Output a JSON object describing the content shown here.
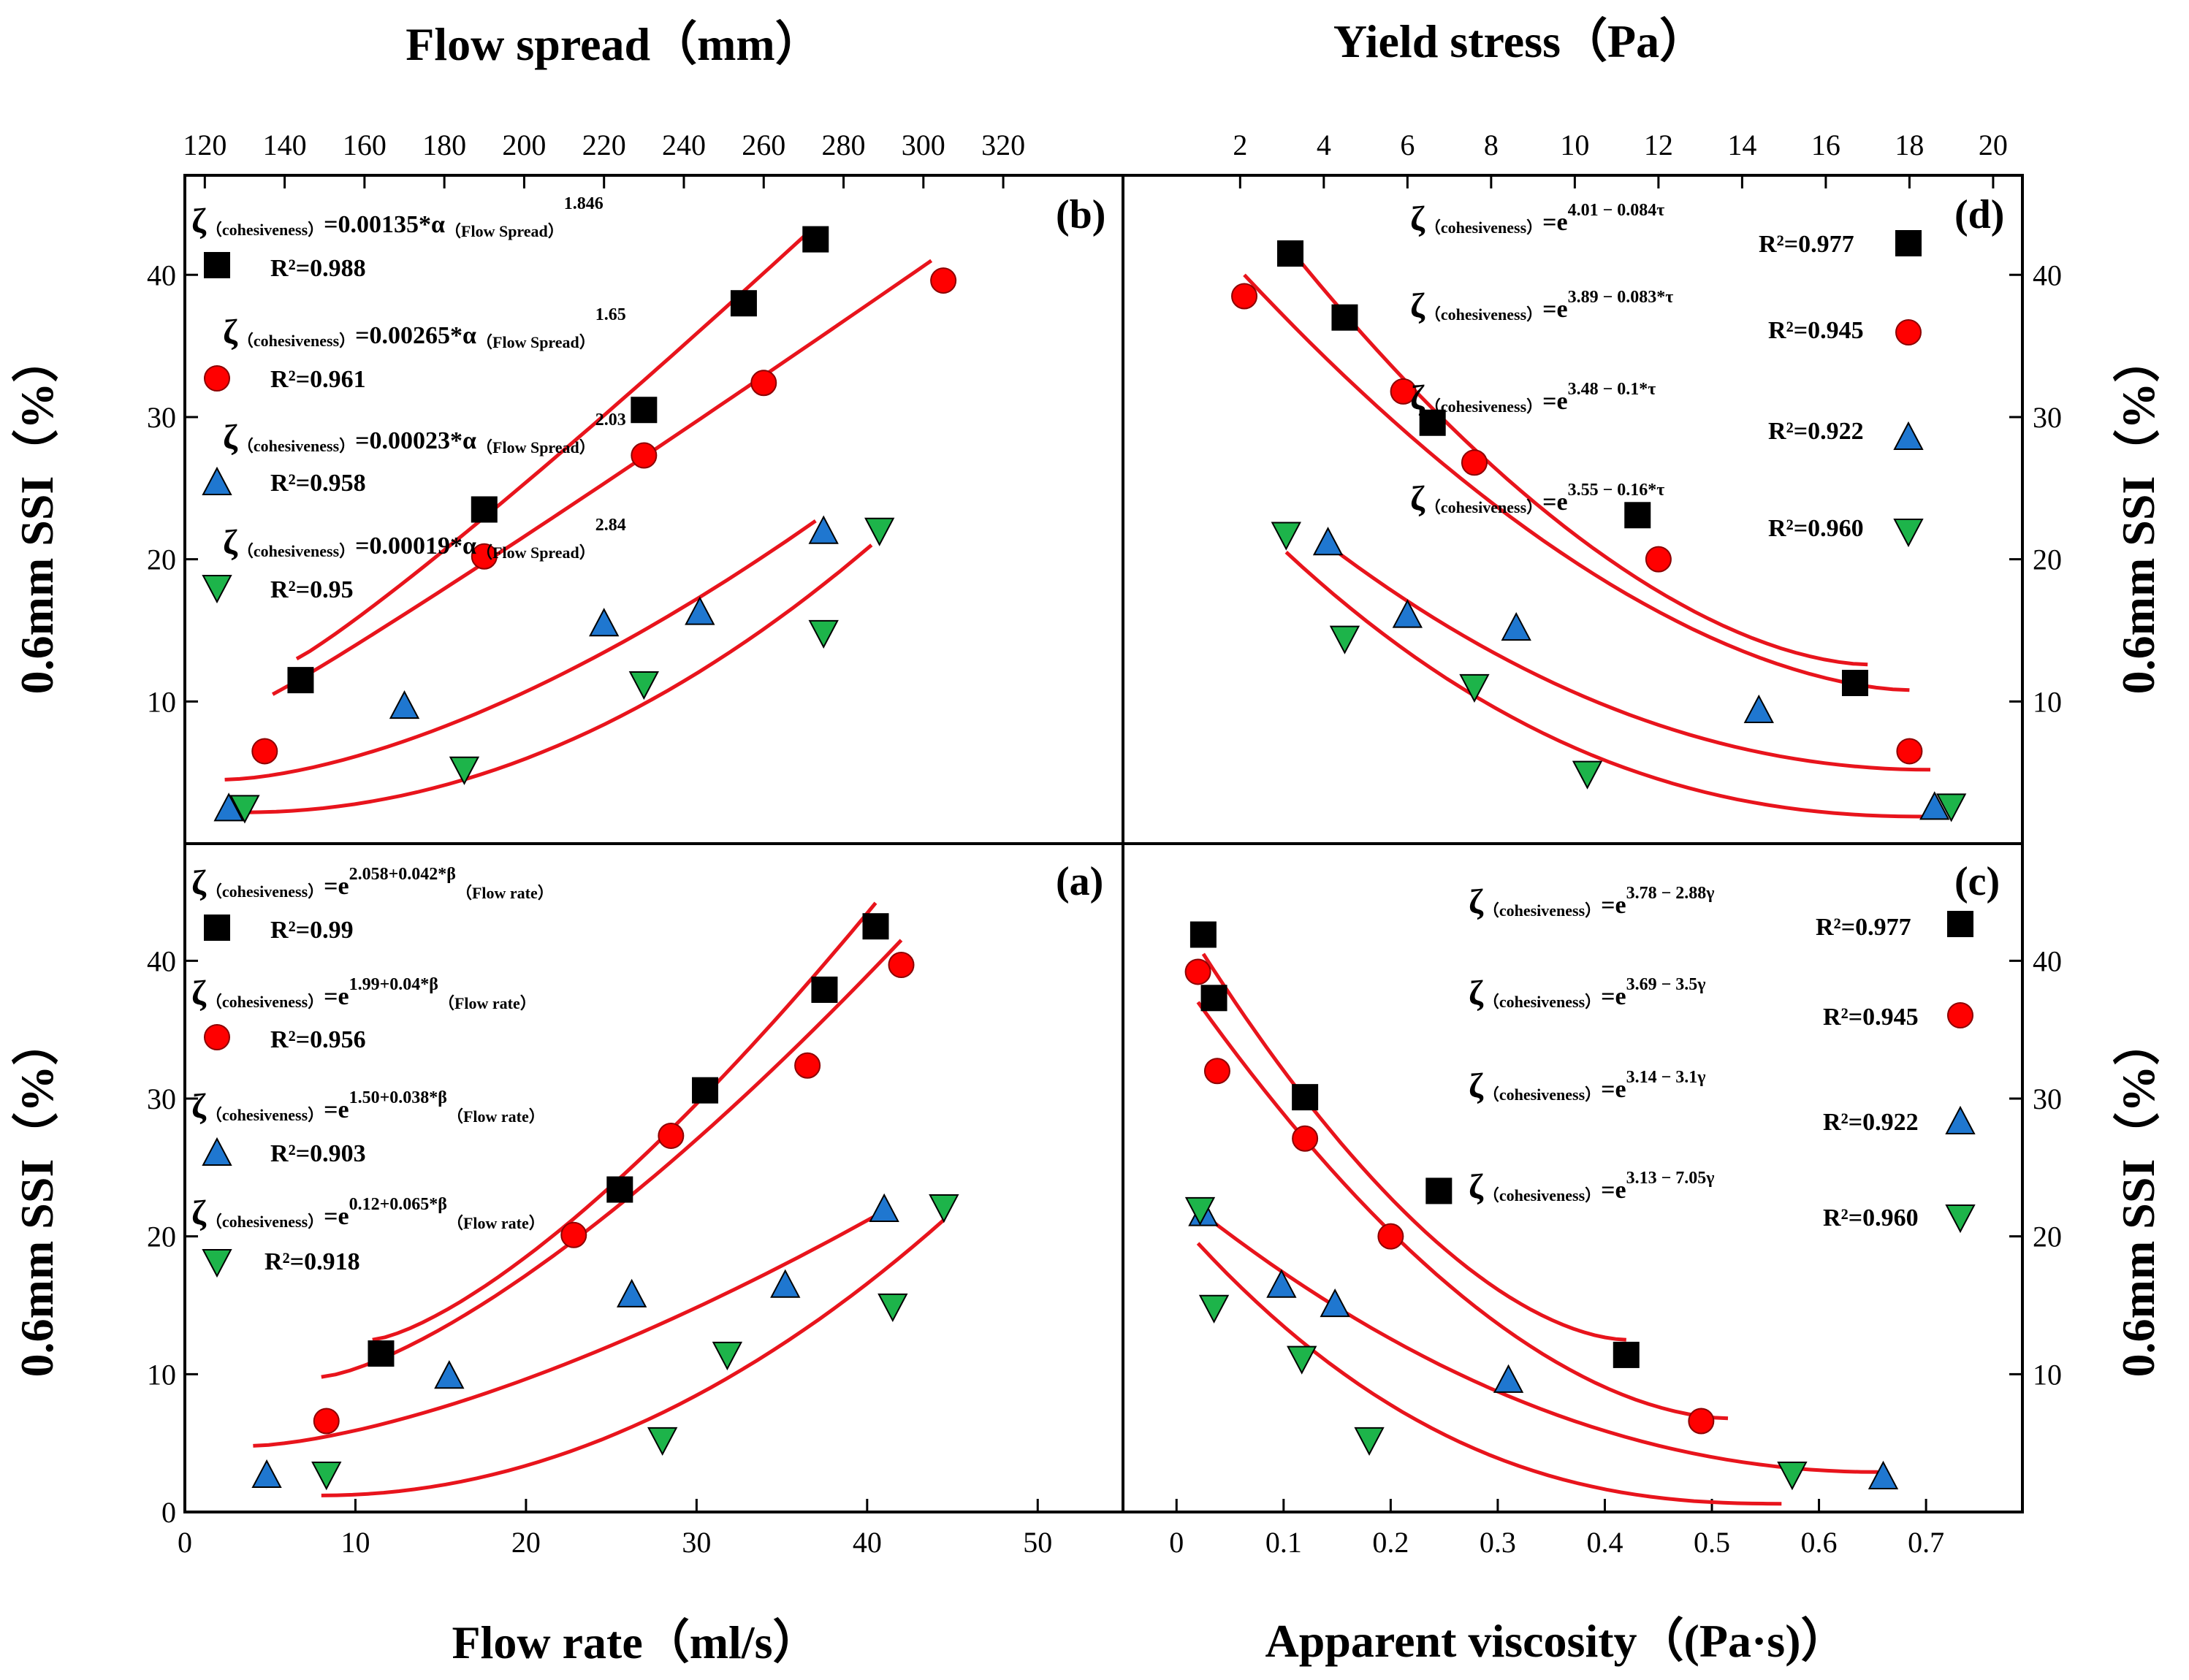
{
  "chart_data": {
    "type": "scatter",
    "title": "",
    "shared": {
      "left_ylabel": "0.6mm SSI（%）",
      "right_ylabel": "0.6mm SSI（%）",
      "top_left_xlabel": "Flow spread（mm）",
      "top_right_xlabel": "Yield stress（Pa）",
      "bottom_left_xlabel": "Flow rate（ml/s）",
      "bottom_right_xlabel": "Apparent viscosity（(Pa·s)）",
      "series_markers": [
        "square",
        "circle",
        "triangle-up",
        "triangle-down"
      ],
      "series_colors": [
        "#000000",
        "#ff0000",
        "#1f77d0",
        "#1db44a"
      ],
      "fit_color": "#e8141c",
      "coef_label": "ζ",
      "coef_sub": "（cohesiveness）"
    },
    "panels": [
      {
        "id": "b",
        "label": "(b)",
        "xlabel": "Flow spread（mm）",
        "x_axis_position": "top",
        "xlim": [
          115,
          350
        ],
        "xticks": [
          120,
          140,
          160,
          180,
          200,
          220,
          240,
          260,
          280,
          300,
          320
        ],
        "ylim": [
          0,
          47
        ],
        "yticks": [
          10,
          20,
          30,
          40
        ],
        "y_axis_position": "left",
        "series": [
          {
            "name": "square",
            "x": [
              144,
              190,
              230,
              255,
              273
            ],
            "y": [
              11.5,
              23.5,
              30.5,
              38,
              42.5
            ],
            "fit": {
              "x0": 143,
              "x1": 272,
              "y0": 13,
              "y1": 43.2,
              "curv": 1.1
            },
            "eq": {
              "pre": "=0.00135*α",
              "sub": "（Flow Spread）",
              "sup": "1.846"
            },
            "r2": "R²=0.988"
          },
          {
            "name": "circle",
            "x": [
              135,
              190,
              230,
              260,
              305
            ],
            "y": [
              6.5,
              20.2,
              27.3,
              32.4,
              39.6
            ],
            "fit": {
              "x0": 137,
              "x1": 302,
              "y0": 10.5,
              "y1": 41,
              "curv": 1.05
            },
            "eq": {
              "pre": "=0.00265*α",
              "sub": "（Flow Spread）",
              "sup": "1.65"
            },
            "r2": "R²=0.961"
          },
          {
            "name": "triangle-up",
            "x": [
              126,
              170,
              220,
              244,
              275
            ],
            "y": [
              2.5,
              9.7,
              15.5,
              16.3,
              22
            ],
            "fit": {
              "x0": 125,
              "x1": 273,
              "y0": 4.5,
              "y1": 22.7,
              "curv": 1.6
            },
            "eq": {
              "pre": "=0.00023*α",
              "sub": "（Flow Spread）",
              "sup": "2.03"
            },
            "r2": "R²=0.958"
          },
          {
            "name": "triangle-down",
            "x": [
              130,
              185,
              230,
              275,
              289
            ],
            "y": [
              2.5,
              5.2,
              11.2,
              14.8,
              22
            ],
            "fit": {
              "x0": 130,
              "x1": 287,
              "y0": 2.2,
              "y1": 21,
              "curv": 2.0
            },
            "eq": {
              "pre": "=0.00019*α",
              "sub": "（Flow Spread）",
              "sup": "2.84"
            },
            "r2": "R²=0.95"
          }
        ]
      },
      {
        "id": "a",
        "label": "(a)",
        "xlabel": "Flow rate（ml/s）",
        "x_axis_position": "bottom",
        "xlim": [
          0,
          55
        ],
        "xticks": [
          0,
          10,
          20,
          30,
          40,
          50
        ],
        "ylim": [
          0,
          48.5
        ],
        "yticks": [
          0,
          10,
          20,
          30,
          40
        ],
        "y_axis_position": "left",
        "series": [
          {
            "name": "square",
            "x": [
              11.5,
              25.5,
              30.5,
              37.5,
              40.5
            ],
            "y": [
              11.5,
              23.4,
              30.6,
              37.9,
              42.5
            ],
            "fit": {
              "x0": 11,
              "x1": 40.5,
              "y0": 12.5,
              "y1": 44.2,
              "curv": 1.4
            },
            "eq": {
              "pre": "=e",
              "sup": "2.058+0.042*β",
              "sub": "（Flow rate）"
            },
            "r2": "R²=0.99"
          },
          {
            "name": "circle",
            "x": [
              8.3,
              22.8,
              28.5,
              36.5,
              42
            ],
            "y": [
              6.6,
              20.1,
              27.3,
              32.4,
              39.7
            ],
            "fit": {
              "x0": 8,
              "x1": 42,
              "y0": 9.8,
              "y1": 41.5,
              "curv": 1.4
            },
            "eq": {
              "pre": "=e",
              "sup": "1.99+0.04*β",
              "sub": "（Flow rate）"
            },
            "r2": "R²=0.956"
          },
          {
            "name": "triangle-up",
            "x": [
              4.8,
              15.5,
              26.2,
              35.2,
              41
            ],
            "y": [
              2.7,
              9.9,
              15.8,
              16.5,
              22
            ],
            "fit": {
              "x0": 4,
              "x1": 40.5,
              "y0": 4.8,
              "y1": 21.5,
              "curv": 1.5
            },
            "eq": {
              "pre": "=e",
              "sup": "1.50+0.038*β",
              "sub": "（Flow rate）"
            },
            "r2": "R²=0.903"
          },
          {
            "name": "triangle-down",
            "x": [
              8.3,
              28,
              31.8,
              41.5,
              44.5
            ],
            "y": [
              2.7,
              5.2,
              11.4,
              14.9,
              22.1
            ],
            "fit": {
              "x0": 8,
              "x1": 44.5,
              "y0": 1.2,
              "y1": 21.2,
              "curv": 2.0
            },
            "eq": {
              "pre": "=e",
              "sup": "0.12+0.065*β",
              "sub": "（Flow rate）"
            },
            "r2": "R²=0.918"
          }
        ]
      },
      {
        "id": "d",
        "label": "(d)",
        "xlabel": "Yield stress（Pa）",
        "x_axis_position": "top",
        "xlim": [
          -0.8,
          20.7
        ],
        "xticks": [
          2,
          4,
          6,
          8,
          10,
          12,
          14,
          16,
          18,
          20
        ],
        "ylim": [
          0,
          47
        ],
        "yticks": [
          10,
          20,
          30,
          40
        ],
        "y_axis_position": "right",
        "series": [
          {
            "name": "square",
            "x": [
              3.2,
              4.5,
              6.6,
              11.5,
              16.7
            ],
            "y": [
              41.5,
              37,
              29.6,
              23.1,
              11.3
            ],
            "fit": {
              "x0": 3.2,
              "x1": 17,
              "y0": 41.8,
              "y1": 12.6,
              "curv": 0.9
            },
            "eq": {
              "pre": "=e",
              "sup": "4.01 − 0.084τ"
            },
            "r2": "R²=0.977"
          },
          {
            "name": "circle",
            "x": [
              2.1,
              5.9,
              7.6,
              12,
              18
            ],
            "y": [
              38.5,
              31.8,
              26.8,
              20,
              6.5
            ],
            "fit": {
              "x0": 2.1,
              "x1": 18,
              "y0": 40,
              "y1": 10.8,
              "curv": 0.9
            },
            "eq": {
              "pre": "=e",
              "sup": "3.89 − 0.083*τ"
            },
            "r2": "R²=0.945"
          },
          {
            "name": "triangle-up",
            "x": [
              4.1,
              6,
              8.6,
              14.4,
              18.6
            ],
            "y": [
              21.2,
              16.1,
              15.2,
              9.4,
              2.6
            ],
            "fit": {
              "x0": 4.1,
              "x1": 18.5,
              "y0": 21,
              "y1": 5.2,
              "curv": 0.7
            },
            "eq": {
              "pre": "=e",
              "sup": "3.48 − 0.1*τ"
            },
            "r2": "R²=0.922"
          },
          {
            "name": "triangle-down",
            "x": [
              3.1,
              4.5,
              7.6,
              10.3,
              19
            ],
            "y": [
              21.7,
              14.4,
              11,
              4.9,
              2.6
            ],
            "fit": {
              "x0": 3.1,
              "x1": 18.5,
              "y0": 20.5,
              "y1": 1.9,
              "curv": 0.6
            },
            "eq": {
              "pre": "=e",
              "sup": "3.55 − 0.16*τ"
            },
            "r2": "R²=0.960"
          }
        ]
      },
      {
        "id": "c",
        "label": "(c)",
        "xlabel": "Apparent viscosity（(Pa·s)）",
        "x_axis_position": "bottom",
        "xlim": [
          -0.05,
          0.79
        ],
        "xticks": [
          0,
          0.1,
          0.2,
          0.3,
          0.4,
          0.5,
          0.6,
          0.7
        ],
        "ylim": [
          0,
          48.5
        ],
        "yticks": [
          10,
          20,
          30,
          40
        ],
        "y_axis_position": "right",
        "series": [
          {
            "name": "square",
            "x": [
              0.025,
              0.035,
              0.12,
              0.245,
              0.42
            ],
            "y": [
              41.9,
              37.3,
              30.1,
              23.3,
              11.4
            ],
            "fit": {
              "x0": 0.025,
              "x1": 0.42,
              "y0": 40.5,
              "y1": 12.5,
              "curv": 0.9
            },
            "eq": {
              "pre": "=e",
              "sup": "3.78 − 2.88γ"
            },
            "r2": "R²=0.977"
          },
          {
            "name": "circle",
            "x": [
              0.02,
              0.038,
              0.12,
              0.2,
              0.49
            ],
            "y": [
              39.2,
              32,
              27.1,
              20,
              6.6
            ],
            "fit": {
              "x0": 0.02,
              "x1": 0.515,
              "y0": 37,
              "y1": 6.8,
              "curv": 0.85
            },
            "eq": {
              "pre": "=e",
              "sup": "3.69 − 3.5γ"
            },
            "r2": "R²=0.945"
          },
          {
            "name": "triangle-up",
            "x": [
              0.025,
              0.098,
              0.148,
              0.31,
              0.66
            ],
            "y": [
              21.7,
              16.5,
              15.1,
              9.6,
              2.6
            ],
            "fit": {
              "x0": 0.025,
              "x1": 0.655,
              "y0": 21.6,
              "y1": 2.9,
              "curv": 0.7
            },
            "eq": {
              "pre": "=e",
              "sup": "3.14 − 3.1γ"
            },
            "r2": "R²=0.922"
          },
          {
            "name": "triangle-down",
            "x": [
              0.022,
              0.035,
              0.117,
              0.18,
              0.575
            ],
            "y": [
              21.9,
              14.8,
              11.1,
              5.2,
              2.7
            ],
            "fit": {
              "x0": 0.02,
              "x1": 0.565,
              "y0": 19.5,
              "y1": 0.6,
              "curv": 0.55
            },
            "eq": {
              "pre": "=e",
              "sup": "3.13 − 7.05γ"
            },
            "r2": "R²=0.960"
          }
        ]
      }
    ]
  }
}
